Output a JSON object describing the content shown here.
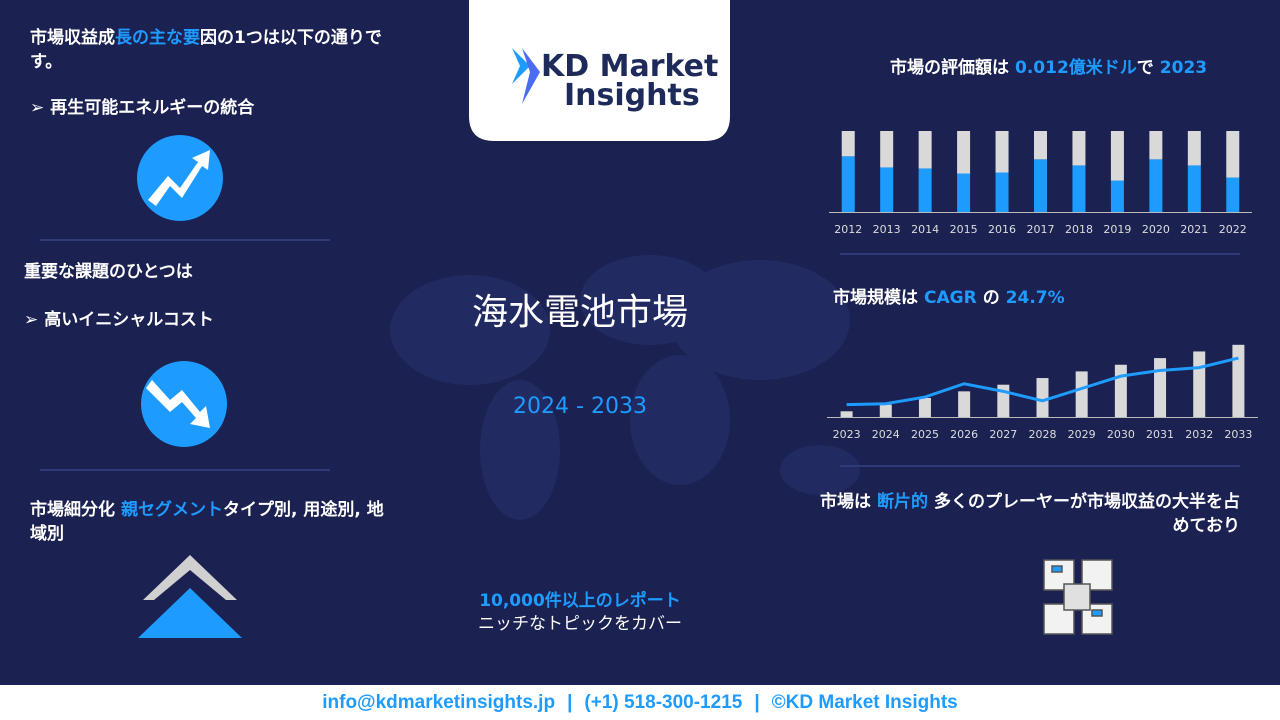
{
  "logo": {
    "line1": "KD Market",
    "line2": "Insights"
  },
  "left": {
    "driver_heading": [
      "市場収益成",
      "長の主な要",
      "因の1つは以下の通りです。"
    ],
    "driver": "再生可能エネルギーの統合",
    "challenge_heading": "重要な課題のひとつは",
    "challenge": "高いイニシャルコスト",
    "segment_heading": [
      "市場細分化",
      "親セグメント",
      "タイプ別, 用途別, 地域別"
    ]
  },
  "center": {
    "title": "海水電池市場",
    "period": "2024 - 2033",
    "reports": "10,000件以上のレポート",
    "reports_sub": "ニッチなトピックをカバー"
  },
  "right": {
    "valuation": [
      "市場の評価額は",
      "0.012億米ドル",
      "で",
      "2023"
    ],
    "cagr": [
      "市場規模は",
      "CAGR",
      "の",
      "24.7%"
    ],
    "fragment": [
      "市場は",
      "断片的",
      "多くのプレーヤーが市場収益の大半を占めており"
    ]
  },
  "footer": {
    "email": "info@kdmarketinsights.jp",
    "separator": "|",
    "phone": "(+1) 518-300-1215",
    "copyright": "©KD Market Insights"
  },
  "chart_data": [
    {
      "type": "bar",
      "stacked": true,
      "categories": [
        "2012",
        "2013",
        "2014",
        "2015",
        "2016",
        "2017",
        "2018",
        "2019",
        "2020",
        "2021",
        "2022"
      ],
      "series": [
        {
          "color": "#1e9bff",
          "values": [
            55,
            44,
            43,
            38,
            39,
            52,
            46,
            31,
            52,
            46,
            34
          ]
        },
        {
          "color": "#d9d9d9",
          "values": [
            25,
            36,
            37,
            42,
            41,
            28,
            34,
            49,
            28,
            34,
            46
          ]
        }
      ],
      "ylim": [
        0,
        80
      ]
    },
    {
      "type": "bar",
      "categories": [
        "2023",
        "2024",
        "2025",
        "2026",
        "2027",
        "2028",
        "2029",
        "2030",
        "2031",
        "2032",
        "2033"
      ],
      "series": [
        {
          "type": "bar",
          "color": "#d9d9d9",
          "values": [
            6,
            13,
            20,
            27,
            34,
            41,
            48,
            55,
            62,
            69,
            76
          ]
        },
        {
          "type": "line",
          "color": "#1e9bff",
          "values": [
            13,
            14,
            21,
            35,
            27,
            17,
            30,
            43,
            49,
            52,
            62
          ]
        }
      ],
      "ylim": [
        0,
        80
      ]
    }
  ]
}
